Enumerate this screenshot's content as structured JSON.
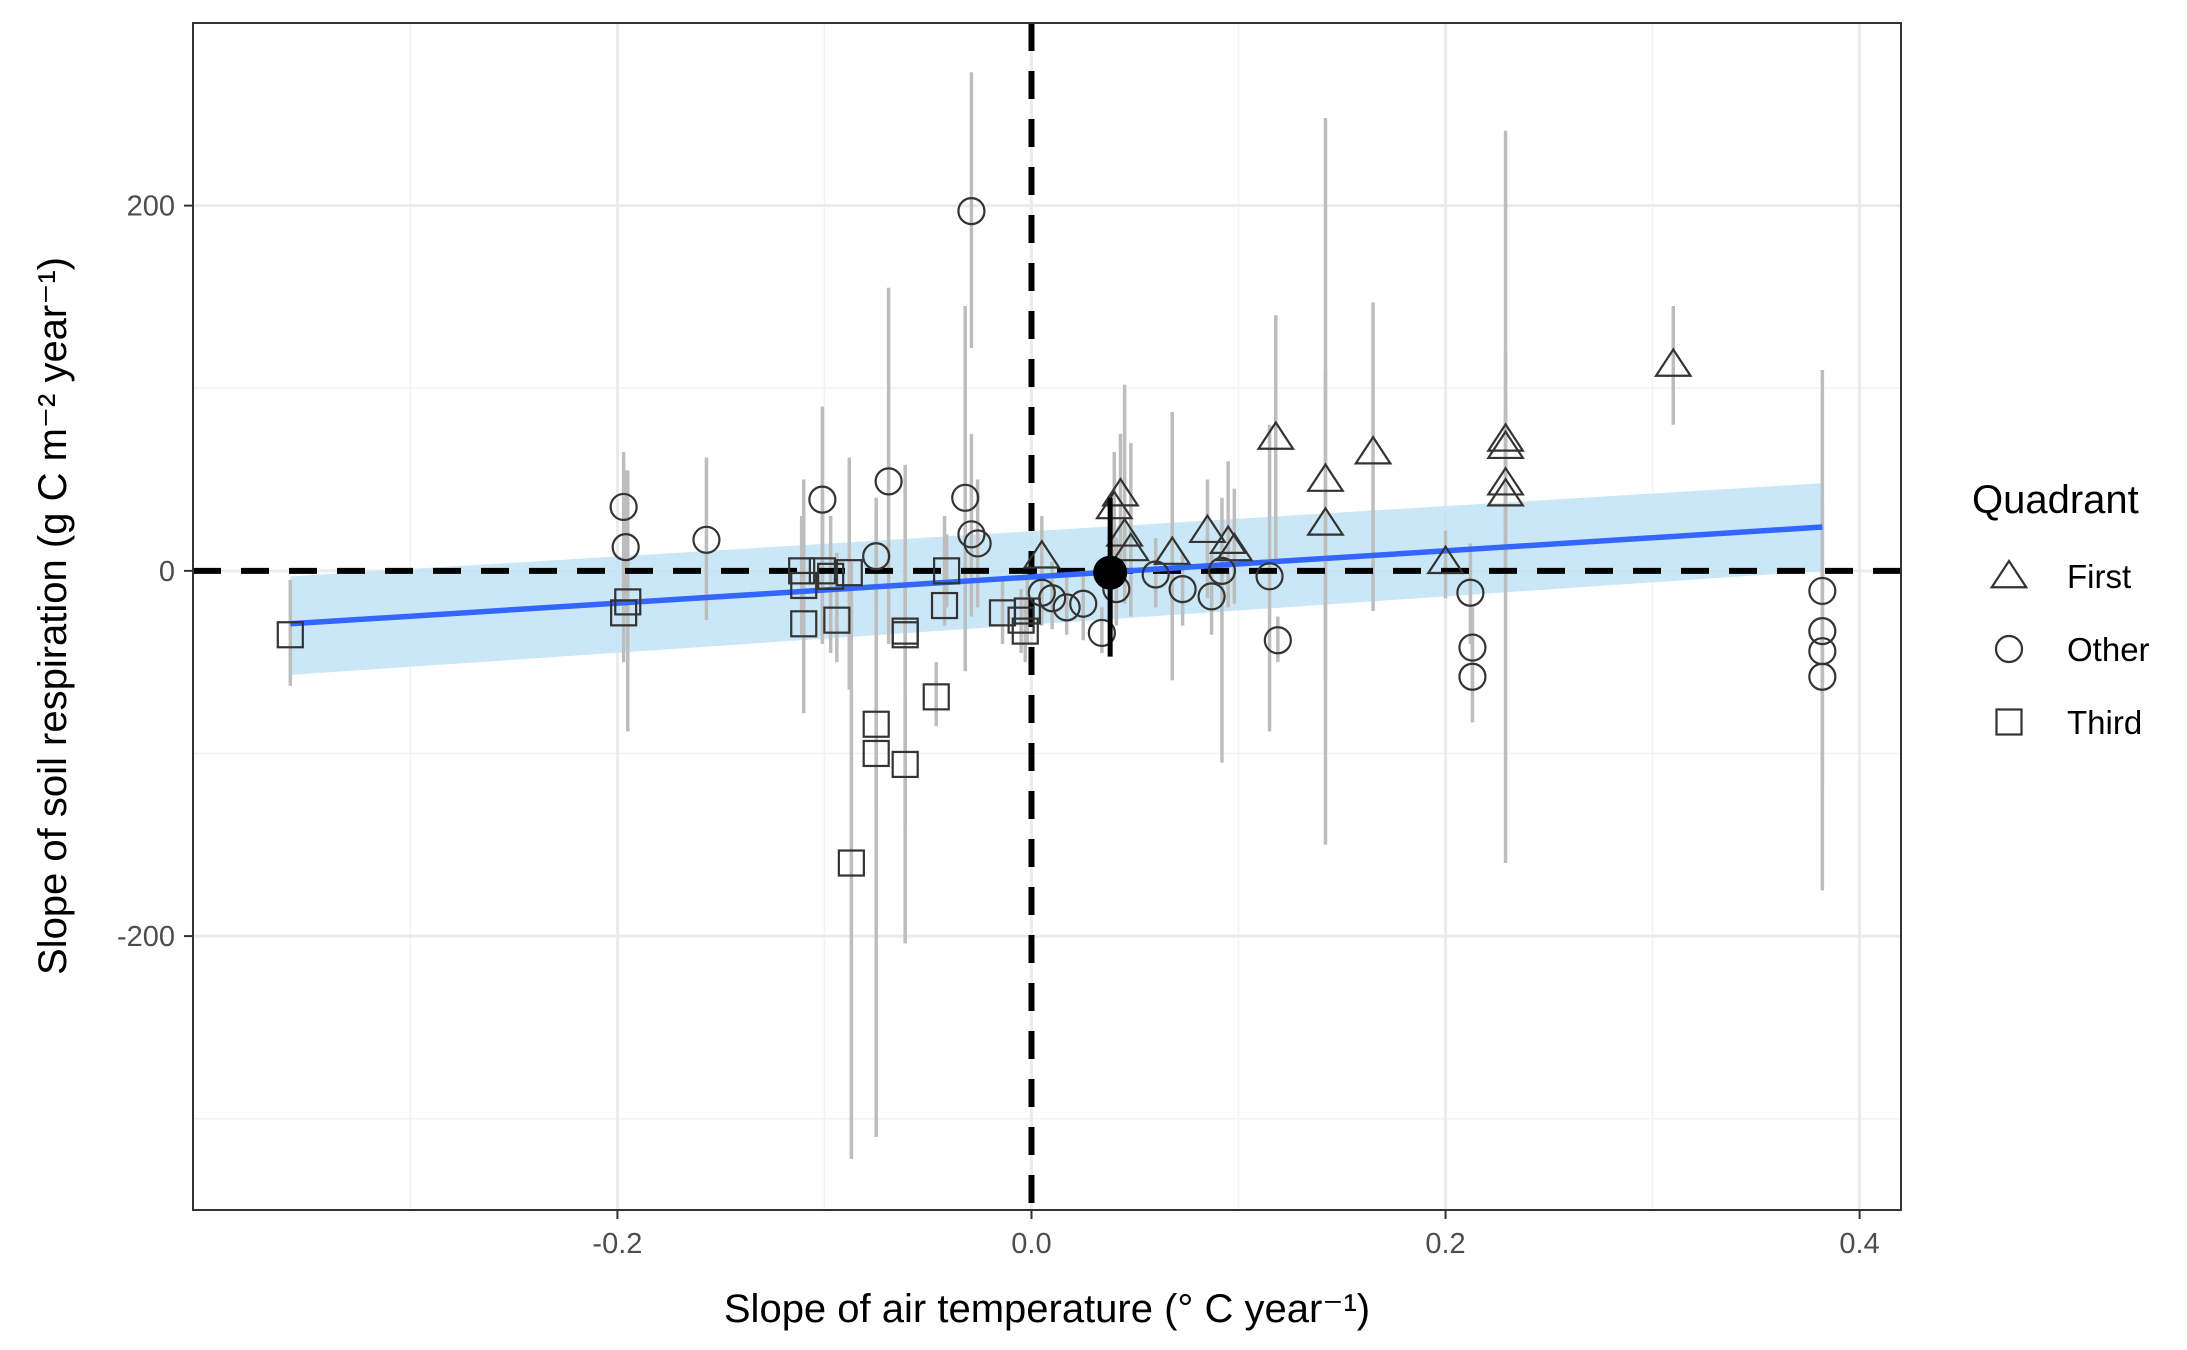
{
  "chart_data": {
    "type": "scatter",
    "xlabel": "Slope of air temperature (° C year⁻¹)",
    "ylabel": "Slope of soil respiration (g C m⁻² year⁻¹)",
    "xlim": [
      -0.405,
      0.42
    ],
    "ylim": [
      -350,
      300
    ],
    "x_ticks": [
      -0.2,
      0.0,
      0.2,
      0.4
    ],
    "x_tick_labels": [
      "-0.2",
      "0.0",
      "0.2",
      "0.4"
    ],
    "y_ticks": [
      -200,
      0,
      200
    ],
    "y_tick_labels": [
      "-200",
      "0",
      "200"
    ],
    "grid": true,
    "legend": {
      "title": "Quadrant",
      "position": "right",
      "entries": [
        {
          "label": "First",
          "shape": "triangle"
        },
        {
          "label": "Other",
          "shape": "circle"
        },
        {
          "label": "Third",
          "shape": "square"
        }
      ]
    },
    "reference_lines": {
      "x": 0,
      "y": 0,
      "style": "dashed"
    },
    "trend": {
      "x0": -0.358,
      "y0": -29,
      "x1": 0.382,
      "y1": 24,
      "band_low_left": -57,
      "band_high_left": -3,
      "band_low_right": 0,
      "band_high_right": 48,
      "line_color": "#3366ff",
      "band_color": "#bfe3f4"
    },
    "mean_point": {
      "x": 0.038,
      "y": -1,
      "ymin": -47,
      "ymax": 40
    },
    "series": [
      {
        "shape": "triangle",
        "points": [
          {
            "x": 0.005,
            "y": 8,
            "ymin": -12,
            "ymax": 30
          },
          {
            "x": 0.04,
            "y": 35,
            "ymin": 0,
            "ymax": 65
          },
          {
            "x": 0.043,
            "y": 42,
            "ymin": 5,
            "ymax": 75
          },
          {
            "x": 0.045,
            "y": 20,
            "ymin": -18,
            "ymax": 102
          },
          {
            "x": 0.048,
            "y": 12,
            "ymin": -25,
            "ymax": 70
          },
          {
            "x": 0.068,
            "y": 10,
            "ymin": -60,
            "ymax": 87
          },
          {
            "x": 0.085,
            "y": 22,
            "ymin": -15,
            "ymax": 50
          },
          {
            "x": 0.095,
            "y": 16,
            "ymin": -20,
            "ymax": 60
          },
          {
            "x": 0.098,
            "y": 12,
            "ymin": -18,
            "ymax": 45
          },
          {
            "x": 0.118,
            "y": 73,
            "ymin": 5,
            "ymax": 140
          },
          {
            "x": 0.142,
            "y": 50,
            "ymin": -150,
            "ymax": 248
          },
          {
            "x": 0.142,
            "y": 26,
            "ymin": -60,
            "ymax": 110
          },
          {
            "x": 0.165,
            "y": 65,
            "ymin": -22,
            "ymax": 147
          },
          {
            "x": 0.2,
            "y": 5,
            "ymin": -15,
            "ymax": 22
          },
          {
            "x": 0.229,
            "y": 72,
            "ymin": 25,
            "ymax": 120
          },
          {
            "x": 0.229,
            "y": 68,
            "ymin": -160,
            "ymax": 241
          },
          {
            "x": 0.229,
            "y": 48,
            "ymin": 10,
            "ymax": 90
          },
          {
            "x": 0.229,
            "y": 42,
            "ymin": 0,
            "ymax": 85
          },
          {
            "x": 0.31,
            "y": 113,
            "ymin": 80,
            "ymax": 145
          }
        ]
      },
      {
        "shape": "circle",
        "points": [
          {
            "x": -0.197,
            "y": 35,
            "ymin": 5,
            "ymax": 65
          },
          {
            "x": -0.196,
            "y": 13,
            "ymin": -25,
            "ymax": 55
          },
          {
            "x": -0.157,
            "y": 17,
            "ymin": -27,
            "ymax": 62
          },
          {
            "x": -0.101,
            "y": 39,
            "ymin": -12,
            "ymax": 90
          },
          {
            "x": -0.075,
            "y": 8,
            "ymin": -20,
            "ymax": 35
          },
          {
            "x": -0.069,
            "y": 49,
            "ymin": -40,
            "ymax": 155
          },
          {
            "x": -0.032,
            "y": 40,
            "ymin": -55,
            "ymax": 145
          },
          {
            "x": -0.029,
            "y": 20,
            "ymin": -25,
            "ymax": 75
          },
          {
            "x": -0.029,
            "y": 197,
            "ymin": 122,
            "ymax": 273
          },
          {
            "x": -0.026,
            "y": 15,
            "ymin": -20,
            "ymax": 50
          },
          {
            "x": 0.005,
            "y": -12,
            "ymin": -30,
            "ymax": 8
          },
          {
            "x": 0.01,
            "y": -15,
            "ymin": -32,
            "ymax": 5
          },
          {
            "x": 0.017,
            "y": -20,
            "ymin": -35,
            "ymax": 0
          },
          {
            "x": 0.025,
            "y": -18,
            "ymin": -38,
            "ymax": 0
          },
          {
            "x": 0.034,
            "y": -34,
            "ymin": -45,
            "ymax": -20
          },
          {
            "x": 0.041,
            "y": -10,
            "ymin": -30,
            "ymax": 18
          },
          {
            "x": 0.06,
            "y": -2,
            "ymin": -20,
            "ymax": 18
          },
          {
            "x": 0.073,
            "y": -10,
            "ymin": -30,
            "ymax": 10
          },
          {
            "x": 0.087,
            "y": -14,
            "ymin": -35,
            "ymax": 10
          },
          {
            "x": 0.092,
            "y": 0,
            "ymin": -105,
            "ymax": 40
          },
          {
            "x": 0.115,
            "y": -3,
            "ymin": -88,
            "ymax": 80
          },
          {
            "x": 0.119,
            "y": -38,
            "ymin": -50,
            "ymax": -25
          },
          {
            "x": 0.212,
            "y": -12,
            "ymin": -40,
            "ymax": 15
          },
          {
            "x": 0.213,
            "y": -42,
            "ymin": -65,
            "ymax": -20
          },
          {
            "x": 0.213,
            "y": -58,
            "ymin": -83,
            "ymax": -35
          },
          {
            "x": 0.382,
            "y": -11,
            "ymin": -60,
            "ymax": 40
          },
          {
            "x": 0.382,
            "y": -33,
            "ymin": -175,
            "ymax": 110
          },
          {
            "x": 0.382,
            "y": -44,
            "ymin": -90,
            "ymax": 5
          },
          {
            "x": 0.382,
            "y": -58,
            "ymin": -120,
            "ymax": 0
          }
        ]
      },
      {
        "shape": "square",
        "points": [
          {
            "x": -0.358,
            "y": -35,
            "ymin": -63,
            "ymax": -5
          },
          {
            "x": -0.197,
            "y": -23,
            "ymin": -50,
            "ymax": 5
          },
          {
            "x": -0.195,
            "y": -17,
            "ymin": -88,
            "ymax": 55
          },
          {
            "x": -0.111,
            "y": 0,
            "ymin": -35,
            "ymax": 30
          },
          {
            "x": -0.11,
            "y": -8,
            "ymin": -50,
            "ymax": 40
          },
          {
            "x": -0.11,
            "y": -29,
            "ymin": -78,
            "ymax": 50
          },
          {
            "x": -0.101,
            "y": 0,
            "ymin": -40,
            "ymax": 35
          },
          {
            "x": -0.097,
            "y": -3,
            "ymin": -45,
            "ymax": 30
          },
          {
            "x": -0.094,
            "y": -27,
            "ymin": -50,
            "ymax": 10
          },
          {
            "x": -0.088,
            "y": -1,
            "ymin": -65,
            "ymax": 62
          },
          {
            "x": -0.087,
            "y": -160,
            "ymin": -322,
            "ymax": 5
          },
          {
            "x": -0.075,
            "y": -84,
            "ymin": -310,
            "ymax": 40
          },
          {
            "x": -0.075,
            "y": -100,
            "ymin": -130,
            "ymax": -70
          },
          {
            "x": -0.061,
            "y": -35,
            "ymin": -204,
            "ymax": 58
          },
          {
            "x": -0.061,
            "y": -33,
            "ymin": -60,
            "ymax": 0
          },
          {
            "x": -0.061,
            "y": -106,
            "ymin": -140,
            "ymax": -70
          },
          {
            "x": -0.046,
            "y": -69,
            "ymin": -85,
            "ymax": -50
          },
          {
            "x": -0.042,
            "y": -19,
            "ymin": -30,
            "ymax": 30
          },
          {
            "x": -0.041,
            "y": 0,
            "ymin": -20,
            "ymax": 20
          },
          {
            "x": -0.014,
            "y": -23,
            "ymin": -40,
            "ymax": -5
          },
          {
            "x": -0.005,
            "y": -27,
            "ymin": -45,
            "ymax": -10
          },
          {
            "x": -0.003,
            "y": -33,
            "ymin": -50,
            "ymax": -15
          },
          {
            "x": -0.002,
            "y": -22,
            "ymin": -40,
            "ymax": 0
          }
        ]
      }
    ]
  }
}
